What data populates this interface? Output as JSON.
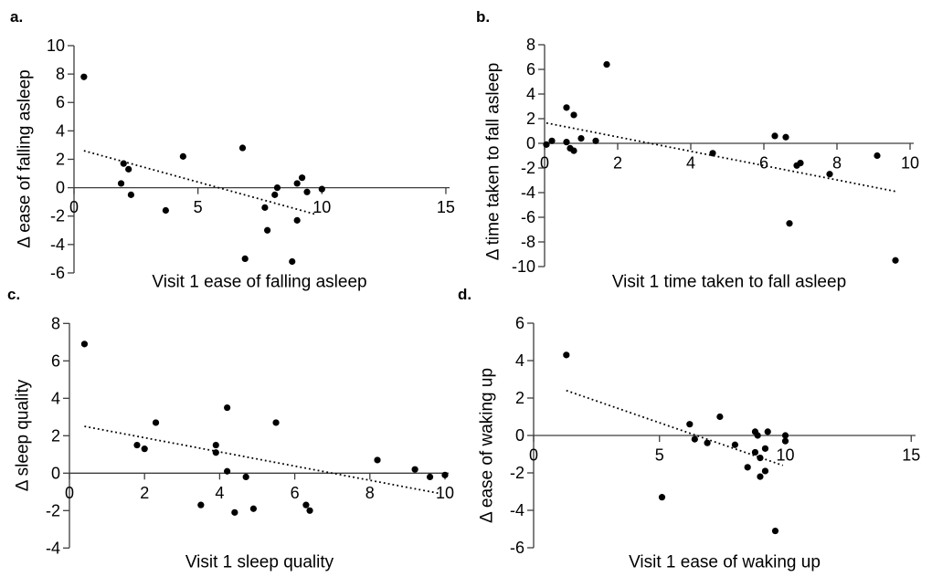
{
  "colors": {
    "background": "#ffffff",
    "point": "#000000",
    "trendline": "#000000",
    "axis": "#3d3d3d",
    "text": "#000000"
  },
  "chart_data": [
    {
      "panel_label": "a.",
      "type": "scatter",
      "xlabel": "Visit 1 ease of falling asleep",
      "ylabel": "Δ ease of falling asleep",
      "xlim": [
        0,
        15
      ],
      "ylim": [
        -6,
        10
      ],
      "xticks": [
        0,
        5,
        10,
        15
      ],
      "yticks": [
        10,
        8,
        6,
        4,
        2,
        0,
        -2,
        -4,
        -6
      ],
      "grid": false,
      "legend": "none",
      "marker": "filled-circle",
      "trendline_style": "dotted",
      "points": [
        [
          0.4,
          7.8
        ],
        [
          1.9,
          0.3
        ],
        [
          2.0,
          1.7
        ],
        [
          2.2,
          1.3
        ],
        [
          2.3,
          -0.5
        ],
        [
          3.7,
          -1.6
        ],
        [
          4.4,
          2.2
        ],
        [
          6.8,
          2.8
        ],
        [
          6.9,
          -5.0
        ],
        [
          7.7,
          -1.4
        ],
        [
          7.8,
          -3.0
        ],
        [
          8.1,
          -0.5
        ],
        [
          8.2,
          0.0
        ],
        [
          8.8,
          -5.2
        ],
        [
          9.0,
          0.3
        ],
        [
          9.0,
          -2.3
        ],
        [
          9.2,
          0.7
        ],
        [
          9.4,
          -0.3
        ],
        [
          10.0,
          -0.1
        ]
      ],
      "trendline": {
        "x1": 0.4,
        "y1": 2.6,
        "x2": 9.8,
        "y2": -1.9
      }
    },
    {
      "panel_label": "b.",
      "type": "scatter",
      "xlabel": "Visit 1 time taken to fall asleep",
      "ylabel": "Δ time taken to fall asleep",
      "xlim": [
        0,
        10
      ],
      "ylim": [
        -10,
        8
      ],
      "xticks": [
        0,
        2,
        4,
        6,
        8,
        10
      ],
      "yticks": [
        8,
        6,
        4,
        2,
        0,
        -2,
        -4,
        -6,
        -8,
        -10
      ],
      "grid": false,
      "legend": "none",
      "marker": "filled-circle",
      "trendline_style": "dotted",
      "points": [
        [
          0.05,
          -0.1
        ],
        [
          0.2,
          0.2
        ],
        [
          0.6,
          2.9
        ],
        [
          0.6,
          0.1
        ],
        [
          0.7,
          -0.4
        ],
        [
          0.8,
          2.3
        ],
        [
          0.8,
          -0.6
        ],
        [
          1.0,
          0.4
        ],
        [
          1.4,
          0.2
        ],
        [
          1.7,
          6.4
        ],
        [
          4.6,
          -0.8
        ],
        [
          6.3,
          0.6
        ],
        [
          6.6,
          0.5
        ],
        [
          6.7,
          -6.5
        ],
        [
          6.9,
          -1.8
        ],
        [
          7.0,
          -1.6
        ],
        [
          7.8,
          -2.5
        ],
        [
          9.1,
          -1.0
        ],
        [
          9.6,
          -9.5
        ]
      ],
      "trendline": {
        "x1": 0.05,
        "y1": 1.65,
        "x2": 9.6,
        "y2": -3.9
      }
    },
    {
      "panel_label": "c.",
      "type": "scatter",
      "xlabel": "Visit 1 sleep quality",
      "ylabel": "Δ sleep quality",
      "xlim": [
        0,
        10
      ],
      "ylim": [
        -4,
        8
      ],
      "xticks": [
        0,
        2,
        4,
        6,
        8,
        10
      ],
      "yticks": [
        8,
        6,
        4,
        2,
        0,
        -2,
        -4
      ],
      "grid": false,
      "legend": "none",
      "marker": "filled-circle",
      "trendline_style": "dotted",
      "points": [
        [
          0.4,
          6.9
        ],
        [
          1.8,
          1.5
        ],
        [
          2.0,
          1.3
        ],
        [
          2.3,
          2.7
        ],
        [
          3.5,
          -1.7
        ],
        [
          3.9,
          1.5
        ],
        [
          3.9,
          1.1
        ],
        [
          4.2,
          3.5
        ],
        [
          4.2,
          0.1
        ],
        [
          4.4,
          -2.1
        ],
        [
          4.7,
          -0.2
        ],
        [
          4.9,
          -1.9
        ],
        [
          5.5,
          2.7
        ],
        [
          6.3,
          -1.7
        ],
        [
          6.4,
          -2.0
        ],
        [
          8.2,
          0.7
        ],
        [
          9.2,
          0.2
        ],
        [
          9.6,
          -0.2
        ],
        [
          10.0,
          -0.1
        ]
      ],
      "trendline": {
        "x1": 0.4,
        "y1": 2.5,
        "x2": 9.9,
        "y2": -1.1
      }
    },
    {
      "panel_label": "d.",
      "type": "scatter",
      "xlabel": "Visit 1 ease of waking up",
      "ylabel": "Δ ease of waking up",
      "xlim": [
        0,
        15
      ],
      "ylim": [
        -6,
        6
      ],
      "xticks": [
        0,
        5,
        10,
        15
      ],
      "yticks": [
        6,
        4,
        2,
        0,
        -2,
        -4,
        -6
      ],
      "grid": false,
      "legend": "none",
      "marker": "filled-circle",
      "trendline_style": "dotted",
      "points": [
        [
          1.3,
          4.3
        ],
        [
          5.1,
          -3.3
        ],
        [
          6.2,
          0.6
        ],
        [
          6.4,
          -0.2
        ],
        [
          6.9,
          -0.4
        ],
        [
          7.4,
          1.0
        ],
        [
          8.0,
          -0.5
        ],
        [
          8.5,
          -1.7
        ],
        [
          8.8,
          0.2
        ],
        [
          8.8,
          -0.9
        ],
        [
          8.9,
          0.0
        ],
        [
          9.0,
          -1.2
        ],
        [
          9.0,
          -2.2
        ],
        [
          9.2,
          -0.7
        ],
        [
          9.2,
          -1.9
        ],
        [
          9.3,
          0.2
        ],
        [
          9.6,
          -5.1
        ],
        [
          10.0,
          0.0
        ],
        [
          10.0,
          -0.3
        ]
      ],
      "trendline": {
        "x1": 1.3,
        "y1": 2.4,
        "x2": 9.9,
        "y2": -1.6
      }
    }
  ]
}
